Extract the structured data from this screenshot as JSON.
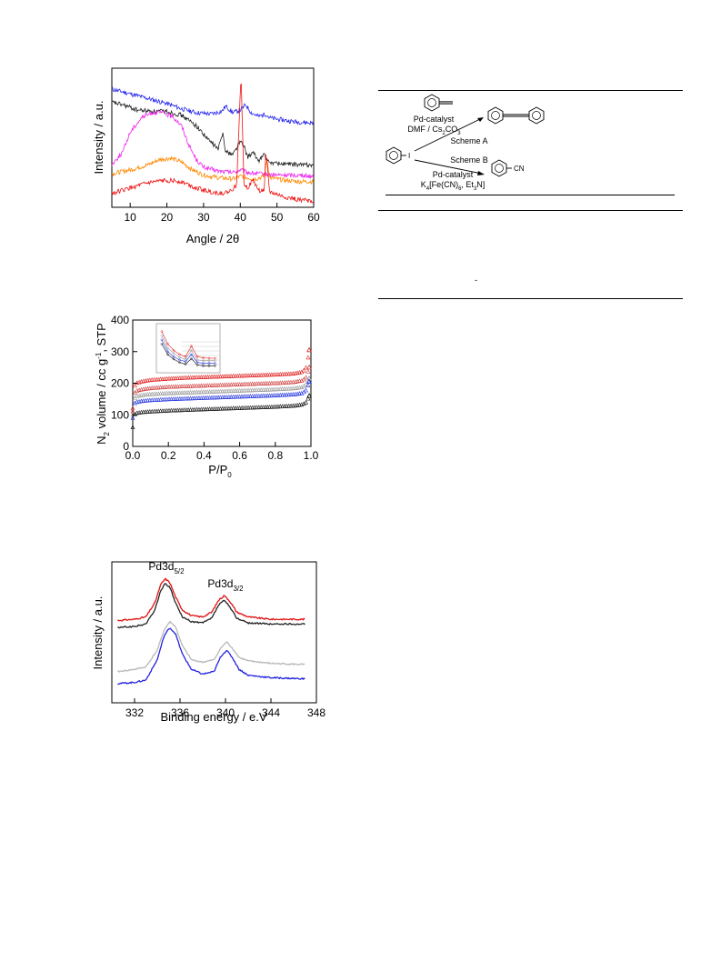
{
  "chart_data": [
    {
      "type": "line",
      "xlabel": "Angle / 2θ",
      "ylabel": "Intensity / a.u.",
      "xlim": [
        5,
        60
      ],
      "xticks": [
        10,
        20,
        30,
        40,
        50,
        60
      ],
      "grid": false,
      "series": [
        {
          "color": "#2222ee",
          "x": [
            5,
            8,
            12,
            16,
            20,
            24,
            28,
            32,
            35,
            36,
            38,
            40,
            41.5,
            43,
            45,
            47,
            48,
            50,
            55,
            60
          ],
          "y": [
            0.88,
            0.86,
            0.83,
            0.8,
            0.77,
            0.73,
            0.7,
            0.69,
            0.71,
            0.75,
            0.7,
            0.72,
            0.76,
            0.7,
            0.67,
            0.69,
            0.66,
            0.65,
            0.63,
            0.62
          ]
        },
        {
          "color": "#222222",
          "x": [
            5,
            8,
            12,
            16,
            20,
            24,
            28,
            31,
            34,
            35.3,
            36,
            38,
            40,
            41,
            42,
            43.5,
            45,
            46.5,
            47.5,
            50,
            55,
            60
          ],
          "y": [
            0.78,
            0.76,
            0.72,
            0.71,
            0.71,
            0.68,
            0.6,
            0.5,
            0.42,
            0.55,
            0.4,
            0.38,
            0.48,
            0.44,
            0.36,
            0.39,
            0.33,
            0.38,
            0.32,
            0.31,
            0.3,
            0.3
          ]
        },
        {
          "color": "#ee22ee",
          "x": [
            5,
            8,
            10,
            13,
            16,
            19,
            22,
            24,
            26,
            28,
            30,
            34,
            38,
            40,
            42,
            45,
            50,
            55,
            60
          ],
          "y": [
            0.3,
            0.4,
            0.55,
            0.66,
            0.7,
            0.7,
            0.66,
            0.6,
            0.45,
            0.34,
            0.28,
            0.25,
            0.24,
            0.26,
            0.24,
            0.23,
            0.22,
            0.22,
            0.21
          ]
        },
        {
          "color": "#ff8800",
          "x": [
            5,
            10,
            15,
            18,
            21,
            24,
            27,
            30,
            34,
            38,
            40,
            42,
            44,
            46.5,
            47.3,
            48,
            52,
            56,
            60
          ],
          "y": [
            0.23,
            0.26,
            0.3,
            0.34,
            0.35,
            0.32,
            0.26,
            0.22,
            0.2,
            0.19,
            0.21,
            0.2,
            0.19,
            0.21,
            0.34,
            0.2,
            0.18,
            0.17,
            0.17
          ]
        },
        {
          "color": "#ee1111",
          "x": [
            5,
            10,
            15,
            20,
            24,
            28,
            32,
            35,
            37,
            39,
            40.2,
            41,
            42,
            43.5,
            45,
            46.5,
            47,
            48,
            52,
            56,
            60
          ],
          "y": [
            0.08,
            0.12,
            0.16,
            0.18,
            0.17,
            0.12,
            0.09,
            0.08,
            0.09,
            0.14,
            1.0,
            0.16,
            0.12,
            0.18,
            0.1,
            0.1,
            0.4,
            0.09,
            0.05,
            0.03,
            0.02
          ]
        }
      ]
    },
    {
      "type": "scatter",
      "xlabel_main": "P/P",
      "xlabel_sub": "0",
      "ylabel_parts": [
        "N",
        "2",
        " volume / cc g",
        "-1",
        ", STP"
      ],
      "xlim": [
        0,
        1.0
      ],
      "ylim": [
        0,
        400
      ],
      "xticks": [
        "0.0",
        "0.2",
        "0.4",
        "0.6",
        "0.8",
        "1.0"
      ],
      "yticks": [
        0,
        100,
        200,
        300,
        400
      ],
      "x": [
        0,
        0.005,
        0.01,
        0.02,
        0.05,
        0.1,
        0.2,
        0.3,
        0.4,
        0.5,
        0.6,
        0.7,
        0.8,
        0.9,
        0.95,
        0.97,
        0.98,
        0.99
      ],
      "series": [
        {
          "color": "#e02020",
          "y": [
            120,
            180,
            190,
            200,
            205,
            210,
            214,
            217,
            219,
            221,
            223,
            225,
            227,
            230,
            235,
            245,
            265,
            305
          ]
        },
        {
          "color": "#d04040",
          "y": [
            110,
            160,
            168,
            175,
            180,
            184,
            188,
            190,
            192,
            194,
            196,
            198,
            200,
            203,
            208,
            215,
            228,
            250
          ]
        },
        {
          "color": "#999999",
          "y": [
            100,
            145,
            152,
            158,
            162,
            165,
            168,
            170,
            172,
            174,
            176,
            178,
            180,
            183,
            187,
            193,
            203,
            215
          ]
        },
        {
          "color": "#2233dd",
          "y": [
            90,
            130,
            136,
            140,
            143,
            146,
            149,
            151,
            153,
            155,
            157,
            159,
            161,
            164,
            168,
            175,
            185,
            205
          ]
        },
        {
          "color": "#111111",
          "y": [
            60,
            95,
            100,
            105,
            108,
            110,
            113,
            115,
            117,
            119,
            121,
            123,
            125,
            128,
            132,
            137,
            145,
            160
          ]
        }
      ],
      "inset": {
        "series": [
          {
            "color": "#e02020",
            "y": [
              0.9,
              0.6,
              0.45,
              0.35,
              0.3,
              0.55,
              0.3,
              0.27,
              0.26,
              0.26
            ]
          },
          {
            "color": "#999999",
            "y": [
              0.8,
              0.5,
              0.38,
              0.28,
              0.24,
              0.45,
              0.22,
              0.2,
              0.2,
              0.2
            ]
          },
          {
            "color": "#2233dd",
            "y": [
              0.7,
              0.42,
              0.3,
              0.22,
              0.18,
              0.35,
              0.16,
              0.14,
              0.14,
              0.14
            ]
          },
          {
            "color": "#111111",
            "y": [
              0.6,
              0.35,
              0.24,
              0.16,
              0.12,
              0.25,
              0.1,
              0.08,
              0.08,
              0.08
            ]
          }
        ]
      }
    },
    {
      "type": "line",
      "xlabel": "Binding energy / e.V",
      "ylabel": "Intensity / a.u.",
      "xlim": [
        330,
        348
      ],
      "xticks": [
        332,
        336,
        340,
        344,
        348
      ],
      "annotations": [
        {
          "main": "Pd3d",
          "sub": "5/2",
          "x": 334.8
        },
        {
          "main": "Pd3d",
          "sub": "3/2",
          "x": 340.0
        }
      ],
      "series": [
        {
          "color": "#e01010",
          "x": [
            330.5,
            332,
            333,
            333.8,
            334.3,
            334.7,
            335.1,
            335.6,
            336.2,
            337,
            338,
            338.8,
            339.4,
            339.9,
            340.4,
            341,
            342,
            344,
            347
          ],
          "y": [
            0.63,
            0.64,
            0.66,
            0.78,
            0.93,
            0.98,
            0.95,
            0.83,
            0.72,
            0.67,
            0.66,
            0.7,
            0.8,
            0.84,
            0.79,
            0.7,
            0.66,
            0.64,
            0.64
          ]
        },
        {
          "color": "#222222",
          "x": [
            330.5,
            332,
            333,
            333.8,
            334.3,
            334.7,
            335.1,
            335.6,
            336.2,
            337,
            338,
            338.8,
            339.4,
            339.9,
            340.4,
            341,
            342,
            344,
            347
          ],
          "y": [
            0.57,
            0.58,
            0.6,
            0.72,
            0.88,
            0.94,
            0.91,
            0.78,
            0.66,
            0.62,
            0.61,
            0.65,
            0.76,
            0.8,
            0.74,
            0.65,
            0.61,
            0.6,
            0.6
          ]
        },
        {
          "color": "#b8b8b8",
          "x": [
            330.5,
            332,
            333,
            334,
            334.6,
            335.1,
            335.6,
            336.2,
            337,
            338,
            339,
            339.6,
            340.1,
            340.6,
            341.2,
            342,
            344,
            347
          ],
          "y": [
            0.2,
            0.22,
            0.24,
            0.38,
            0.55,
            0.62,
            0.58,
            0.42,
            0.3,
            0.28,
            0.3,
            0.4,
            0.45,
            0.4,
            0.32,
            0.29,
            0.27,
            0.26
          ]
        },
        {
          "color": "#2222dd",
          "x": [
            330.5,
            332,
            333,
            334,
            334.6,
            335.1,
            335.6,
            336.2,
            337,
            338,
            339,
            339.6,
            340.1,
            340.6,
            341.2,
            342,
            344,
            347
          ],
          "y": [
            0.1,
            0.11,
            0.13,
            0.3,
            0.5,
            0.57,
            0.52,
            0.35,
            0.22,
            0.18,
            0.2,
            0.33,
            0.38,
            0.32,
            0.22,
            0.17,
            0.15,
            0.14
          ]
        }
      ]
    }
  ],
  "scheme": {
    "reagent_a1": "Pd-catalyst",
    "reagent_a2_main": "DMF / Cs",
    "reagent_a2_sub1": "2",
    "reagent_a2_mid": "CO",
    "reagent_a2_sub2": "3",
    "label_a": "Scheme A",
    "label_b": "Scheme B",
    "reagent_b1": "Pd-catalyst",
    "reagent_b2_pre": "K",
    "reagent_b2_sub1": "4",
    "reagent_b2_mid": "[Fe(CN)",
    "reagent_b2_sub2": "6",
    "reagent_b2_post": ", Et",
    "reagent_b2_sub3": "3",
    "reagent_b2_end": "N]",
    "iodo": "I",
    "cyano": "CN"
  },
  "table_mark": "-"
}
